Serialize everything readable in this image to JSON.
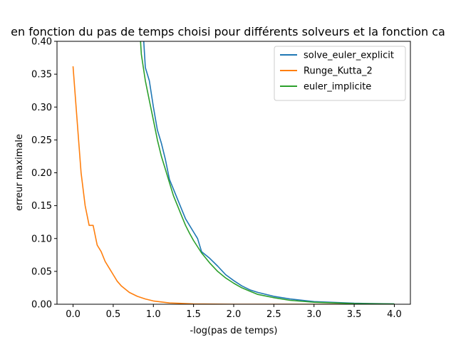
{
  "chart_data": {
    "type": "line",
    "title": "en fonction du pas de temps choisi pour différents solveurs et la fonction ca",
    "xlabel": "-log(pas de temps)",
    "ylabel": "erreur maximale",
    "xlim": [
      -0.2,
      4.2
    ],
    "ylim": [
      0,
      0.4
    ],
    "xticks": [
      0.0,
      0.5,
      1.0,
      1.5,
      2.0,
      2.5,
      3.0,
      3.5,
      4.0
    ],
    "xtick_labels": [
      "0.0",
      "0.5",
      "1.0",
      "1.5",
      "2.0",
      "2.5",
      "3.0",
      "3.5",
      "4.0"
    ],
    "yticks": [
      0.0,
      0.05,
      0.1,
      0.15,
      0.2,
      0.25,
      0.3,
      0.35,
      0.4
    ],
    "ytick_labels": [
      "0.00",
      "0.05",
      "0.10",
      "0.15",
      "0.20",
      "0.25",
      "0.30",
      "0.35",
      "0.40"
    ],
    "grid": false,
    "legend_position": "top-right",
    "series": [
      {
        "name": "solve_euler_explicit",
        "color": "#1f77b4",
        "points": [
          [
            0.87,
            0.42
          ],
          [
            0.9,
            0.36
          ],
          [
            0.95,
            0.34
          ],
          [
            1.0,
            0.3
          ],
          [
            1.05,
            0.265
          ],
          [
            1.1,
            0.245
          ],
          [
            1.15,
            0.22
          ],
          [
            1.2,
            0.19
          ],
          [
            1.25,
            0.175
          ],
          [
            1.3,
            0.16
          ],
          [
            1.35,
            0.145
          ],
          [
            1.4,
            0.13
          ],
          [
            1.45,
            0.12
          ],
          [
            1.5,
            0.11
          ],
          [
            1.55,
            0.1
          ],
          [
            1.6,
            0.08
          ],
          [
            1.7,
            0.07
          ],
          [
            1.8,
            0.058
          ],
          [
            1.9,
            0.045
          ],
          [
            2.0,
            0.036
          ],
          [
            2.1,
            0.028
          ],
          [
            2.2,
            0.022
          ],
          [
            2.3,
            0.018
          ],
          [
            2.5,
            0.012
          ],
          [
            2.7,
            0.008
          ],
          [
            3.0,
            0.004
          ],
          [
            3.5,
            0.0015
          ],
          [
            4.0,
            0.0005
          ]
        ]
      },
      {
        "name": "Runge_Kutta_2",
        "color": "#ff7f0e",
        "points": [
          [
            0.0,
            0.362
          ],
          [
            0.05,
            0.28
          ],
          [
            0.1,
            0.2
          ],
          [
            0.15,
            0.15
          ],
          [
            0.2,
            0.12
          ],
          [
            0.25,
            0.12
          ],
          [
            0.3,
            0.09
          ],
          [
            0.35,
            0.08
          ],
          [
            0.4,
            0.065
          ],
          [
            0.45,
            0.055
          ],
          [
            0.5,
            0.045
          ],
          [
            0.55,
            0.035
          ],
          [
            0.6,
            0.028
          ],
          [
            0.7,
            0.018
          ],
          [
            0.8,
            0.012
          ],
          [
            0.9,
            0.008
          ],
          [
            1.0,
            0.005
          ],
          [
            1.2,
            0.002
          ],
          [
            1.5,
            0.0005
          ],
          [
            2.0,
            0.0
          ],
          [
            4.0,
            0.0
          ]
        ]
      },
      {
        "name": "euler_implicite",
        "color": "#2ca02c",
        "points": [
          [
            0.83,
            0.42
          ],
          [
            0.85,
            0.38
          ],
          [
            0.9,
            0.34
          ],
          [
            0.95,
            0.31
          ],
          [
            1.0,
            0.28
          ],
          [
            1.05,
            0.25
          ],
          [
            1.1,
            0.225
          ],
          [
            1.15,
            0.205
          ],
          [
            1.2,
            0.185
          ],
          [
            1.25,
            0.165
          ],
          [
            1.3,
            0.15
          ],
          [
            1.35,
            0.135
          ],
          [
            1.4,
            0.12
          ],
          [
            1.45,
            0.108
          ],
          [
            1.5,
            0.097
          ],
          [
            1.6,
            0.078
          ],
          [
            1.7,
            0.063
          ],
          [
            1.8,
            0.05
          ],
          [
            1.9,
            0.04
          ],
          [
            2.0,
            0.032
          ],
          [
            2.1,
            0.025
          ],
          [
            2.2,
            0.02
          ],
          [
            2.3,
            0.015
          ],
          [
            2.5,
            0.01
          ],
          [
            2.7,
            0.006
          ],
          [
            3.0,
            0.003
          ],
          [
            3.5,
            0.001
          ],
          [
            4.0,
            0.0003
          ]
        ]
      }
    ]
  }
}
